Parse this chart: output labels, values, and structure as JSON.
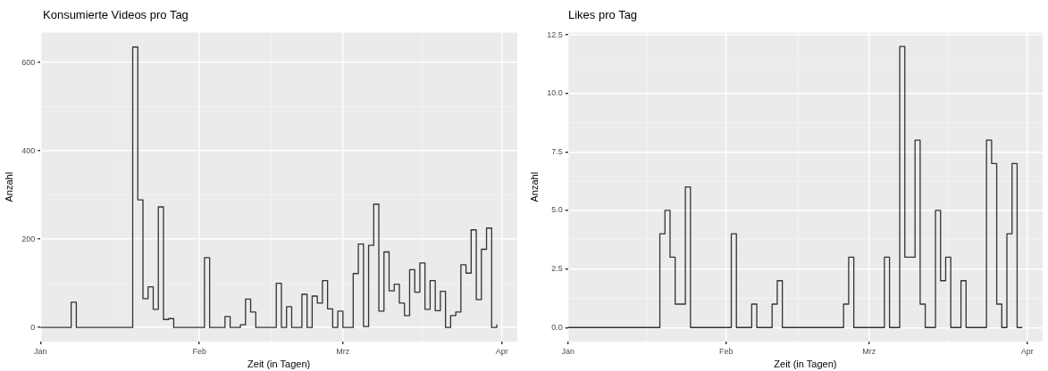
{
  "chart_data": [
    {
      "type": "step",
      "title": "Konsumierte Videos pro Tag",
      "xlabel": "Zeit (in Tagen)",
      "ylabel": "Anzahl",
      "series": [
        {
          "color": "#333333",
          "x": [
            "--01-01",
            "--01-07",
            "--01-08",
            "--01-19",
            "--01-20",
            "--01-21",
            "--01-22",
            "--01-23",
            "--01-24",
            "--01-25",
            "--01-26",
            "--01-27",
            "--02-02",
            "--02-03",
            "--02-06",
            "--02-07",
            "--02-09",
            "--02-10",
            "--02-11",
            "--02-12",
            "--02-16",
            "--02-17",
            "--02-18",
            "--02-19",
            "--02-21",
            "--02-22",
            "--02-23",
            "--02-24",
            "--02-25",
            "--02-26",
            "--02-27",
            "--02-28",
            "--03-01",
            "--03-03",
            "--03-04",
            "--03-05",
            "--03-06",
            "--03-07",
            "--03-08",
            "--03-09",
            "--03-10",
            "--03-11",
            "--03-12",
            "--03-13",
            "--03-14",
            "--03-15",
            "--03-16",
            "--03-17",
            "--03-18",
            "--03-19",
            "--03-20",
            "--03-21",
            "--03-22",
            "--03-23",
            "--03-24",
            "--03-25",
            "--03-26",
            "--03-27",
            "--03-28",
            "--03-29",
            "--03-30",
            "--03-31"
          ],
          "values": [
            0,
            57,
            0,
            635,
            289,
            65,
            92,
            41,
            273,
            18,
            20,
            0,
            158,
            0,
            25,
            0,
            6,
            64,
            35,
            0,
            100,
            0,
            47,
            0,
            75,
            0,
            71,
            55,
            106,
            42,
            0,
            37,
            0,
            122,
            189,
            2,
            186,
            279,
            37,
            171,
            83,
            98,
            55,
            27,
            131,
            80,
            146,
            41,
            106,
            38,
            82,
            0,
            27,
            35,
            142,
            123,
            221,
            63,
            177,
            225,
            0,
            7
          ]
        }
      ],
      "xlim": [
        "--01-01",
        "--04-04"
      ],
      "xticks": [
        {
          "value": "--01-01",
          "label": "Jan"
        },
        {
          "value": "--02-01",
          "label": "Feb"
        },
        {
          "value": "--03-01",
          "label": "Mrz"
        },
        {
          "value": "--04-01",
          "label": "Apr"
        }
      ],
      "ylim": [
        -32,
        668
      ],
      "yticks": [
        0,
        200,
        400,
        600
      ],
      "grid": true
    },
    {
      "type": "step",
      "title": "Likes pro Tag",
      "xlabel": "Zeit (in Tagen)",
      "ylabel": "Anzahl",
      "series": [
        {
          "color": "#333333",
          "x": [
            "--01-01",
            "--01-19",
            "--01-20",
            "--01-21",
            "--01-22",
            "--01-24",
            "--01-25",
            "--02-02",
            "--02-03",
            "--02-06",
            "--02-07",
            "--02-10",
            "--02-11",
            "--02-12",
            "--02-24",
            "--02-25",
            "--02-26",
            "--03-04",
            "--03-05",
            "--03-07",
            "--03-08",
            "--03-10",
            "--03-11",
            "--03-12",
            "--03-14",
            "--03-15",
            "--03-16",
            "--03-17",
            "--03-19",
            "--03-20",
            "--03-24",
            "--03-25",
            "--03-26",
            "--03-27",
            "--03-28",
            "--03-29",
            "--03-30",
            "--03-31"
          ],
          "values": [
            0,
            4,
            5,
            3,
            1,
            6,
            0,
            4,
            0,
            1,
            0,
            1,
            2,
            0,
            1,
            3,
            0,
            3,
            0,
            12,
            3,
            8,
            1,
            0,
            5,
            2,
            3,
            0,
            2,
            0,
            8,
            7,
            1,
            0,
            4,
            7,
            0,
            0
          ]
        }
      ],
      "xlim": [
        "--01-01",
        "--04-04"
      ],
      "xticks": [
        {
          "value": "--01-01",
          "label": "Jan"
        },
        {
          "value": "--02-01",
          "label": "Feb"
        },
        {
          "value": "--03-01",
          "label": "Mrz"
        },
        {
          "value": "--04-01",
          "label": "Apr"
        }
      ],
      "ylim": [
        -0.6,
        12.6
      ],
      "yticks": [
        {
          "value": 0,
          "label": "0.0"
        },
        {
          "value": 2.5,
          "label": "2.5"
        },
        {
          "value": 5,
          "label": "5.0"
        },
        {
          "value": 7.5,
          "label": "7.5"
        },
        {
          "value": 10,
          "label": "10.0"
        },
        {
          "value": 12.5,
          "label": "12.5"
        }
      ],
      "grid": true
    }
  ]
}
